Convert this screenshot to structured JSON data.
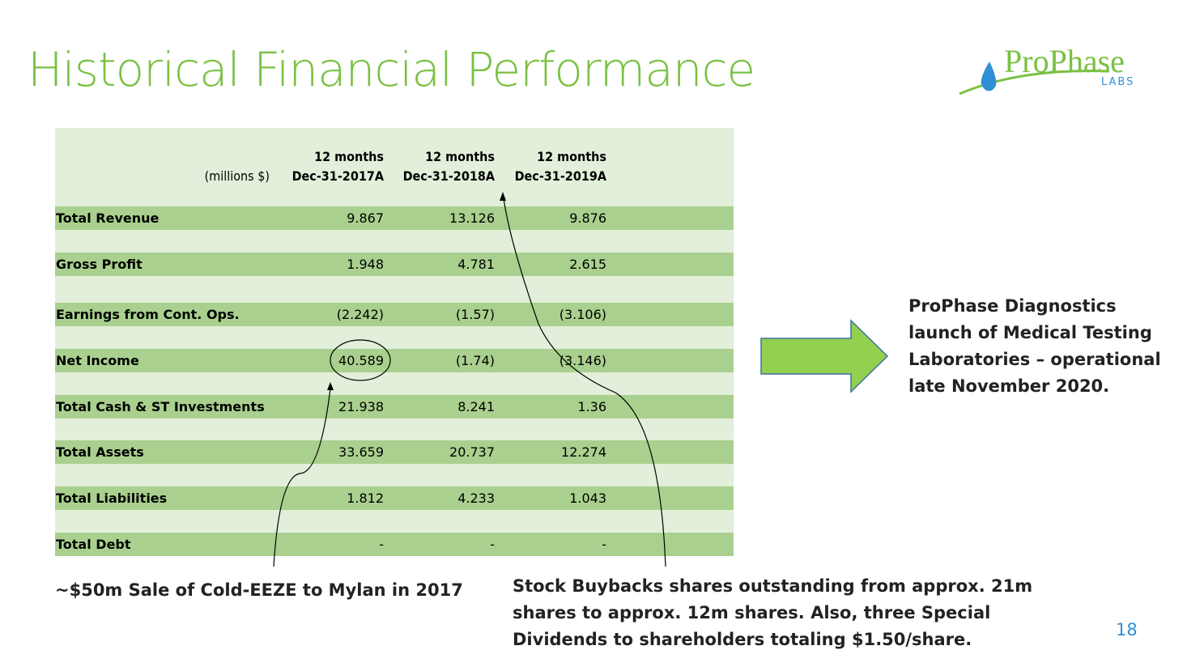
{
  "title": "Historical Financial Performance",
  "logo": {
    "name": "ProPhase",
    "sub": "LABS"
  },
  "table": {
    "unit_label": "(millions $)",
    "columns": [
      {
        "period": "12 months",
        "date": "Dec-31-2017A"
      },
      {
        "period": "12 months",
        "date": "Dec-31-2018A"
      },
      {
        "period": "12 months",
        "date": "Dec-31-2019A"
      }
    ],
    "rows": [
      {
        "label": "Total Revenue",
        "values": [
          "9.867",
          "13.126",
          "9.876"
        ]
      },
      {
        "label": "Gross Profit",
        "values": [
          "1.948",
          "4.781",
          "2.615"
        ]
      },
      {
        "label": "Earnings from Cont. Ops.",
        "values": [
          "(2.242)",
          "(1.57)",
          "(3.106)"
        ]
      },
      {
        "label": "Net Income",
        "values": [
          "40.589",
          "(1.74)",
          "(3.146)"
        ]
      },
      {
        "label": "Total Cash & ST Investments",
        "values": [
          "21.938",
          "8.241",
          "1.36"
        ]
      },
      {
        "label": "Total Assets",
        "values": [
          "33.659",
          "20.737",
          "12.274"
        ]
      },
      {
        "label": "Total Liabilities",
        "values": [
          "1.812",
          "4.233",
          "1.043"
        ]
      },
      {
        "label": "Total Debt",
        "values": [
          "-",
          "-",
          "-"
        ]
      }
    ]
  },
  "callout": "ProPhase Diagnostics launch of Medical Testing Laboratories – operational late November 2020.",
  "note_left": "~$50m Sale of Cold-EEZE to Mylan in 2017",
  "note_right": "Stock Buybacks shares outstanding from approx. 21m shares to approx. 12m shares. Also, three Special Dividends to shareholders totaling $1.50/share.",
  "page_number": "18",
  "colors": {
    "title": "#7ac143",
    "row_dark": "#a9d08e",
    "row_light": "#e2efda",
    "arrow": "#92d050",
    "page": "#2f8fd6"
  }
}
